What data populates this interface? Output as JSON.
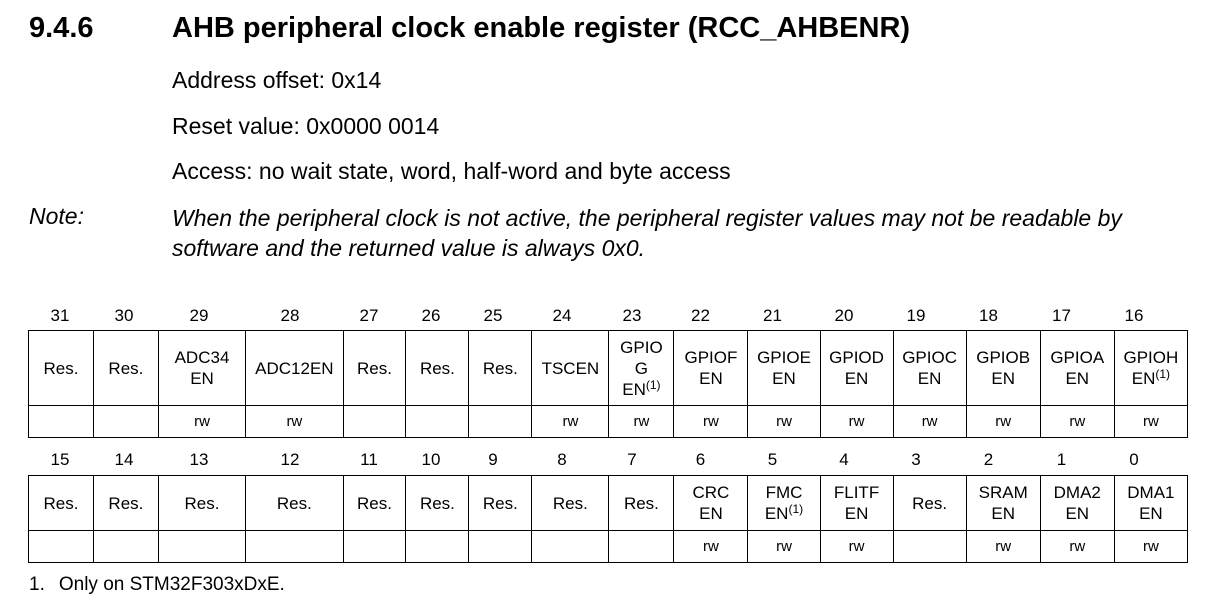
{
  "section": {
    "number": "9.4.6",
    "title": "AHB peripheral clock enable register (RCC_AHBENR)"
  },
  "address_offset": "Address offset: 0x14",
  "reset_value": "Reset value: 0x0000 0014",
  "access": "Access: no wait state, word, half-word and byte access",
  "note": {
    "label": "Note:",
    "text": "When the peripheral clock is not active, the peripheral register values may not be readable by software and the returned value is always 0x0."
  },
  "high": {
    "bits": [
      "31",
      "30",
      "29",
      "28",
      "27",
      "26",
      "25",
      "24",
      "23",
      "22",
      "21",
      "20",
      "19",
      "18",
      "17",
      "16"
    ],
    "fields": [
      {
        "name": "Res.",
        "note": ""
      },
      {
        "name": "Res.",
        "note": ""
      },
      {
        "name": "ADC34\nEN",
        "note": ""
      },
      {
        "name": "ADC12EN",
        "note": ""
      },
      {
        "name": "Res.",
        "note": ""
      },
      {
        "name": "Res.",
        "note": ""
      },
      {
        "name": "Res.",
        "note": ""
      },
      {
        "name": "TSCEN",
        "note": ""
      },
      {
        "name": "GPIO\nG\nEN",
        "note": "(1)"
      },
      {
        "name": "GPIOF\nEN",
        "note": ""
      },
      {
        "name": "GPIOE\nEN",
        "note": ""
      },
      {
        "name": "GPIOD\nEN",
        "note": ""
      },
      {
        "name": "GPIOC\nEN",
        "note": ""
      },
      {
        "name": "GPIOB\nEN",
        "note": ""
      },
      {
        "name": "GPIOA\nEN",
        "note": ""
      },
      {
        "name": "GPIOH\nEN",
        "note": "(1)"
      }
    ],
    "access": [
      "",
      "",
      "rw",
      "rw",
      "",
      "",
      "",
      "rw",
      "rw",
      "rw",
      "rw",
      "rw",
      "rw",
      "rw",
      "rw",
      "rw"
    ]
  },
  "low": {
    "bits": [
      "15",
      "14",
      "13",
      "12",
      "11",
      "10",
      "9",
      "8",
      "7",
      "6",
      "5",
      "4",
      "3",
      "2",
      "1",
      "0"
    ],
    "fields": [
      {
        "name": "Res.",
        "note": ""
      },
      {
        "name": "Res.",
        "note": ""
      },
      {
        "name": "Res.",
        "note": ""
      },
      {
        "name": "Res.",
        "note": ""
      },
      {
        "name": "Res.",
        "note": ""
      },
      {
        "name": "Res.",
        "note": ""
      },
      {
        "name": "Res.",
        "note": ""
      },
      {
        "name": "Res.",
        "note": ""
      },
      {
        "name": "Res.",
        "note": ""
      },
      {
        "name": "CRC\nEN",
        "note": ""
      },
      {
        "name": "FMC\nEN",
        "note": "(1)"
      },
      {
        "name": "FLITF\nEN",
        "note": ""
      },
      {
        "name": "Res.",
        "note": ""
      },
      {
        "name": "SRAM\nEN",
        "note": ""
      },
      {
        "name": "DMA2\nEN",
        "note": ""
      },
      {
        "name": "DMA1\nEN",
        "note": ""
      }
    ],
    "access": [
      "",
      "",
      "",
      "",
      "",
      "",
      "",
      "",
      "",
      "rw",
      "rw",
      "rw",
      "",
      "rw",
      "rw",
      "rw"
    ]
  },
  "footnote": {
    "number": "1.",
    "text": "Only on STM32F303xDxE."
  }
}
